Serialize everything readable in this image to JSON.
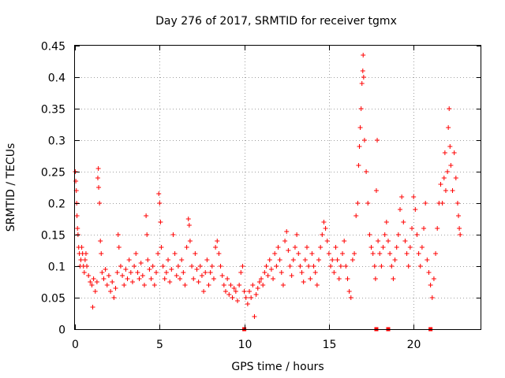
{
  "chart_data": {
    "type": "scatter",
    "title": "Day 276 of 2017, SRMTID for receiver tgmx",
    "xlabel": "GPS time / hours",
    "ylabel": "SRMTID / TECUs",
    "xlim": [
      0,
      24
    ],
    "ylim": [
      0,
      0.45
    ],
    "xticks": [
      "0",
      "5",
      "10",
      "15",
      "20"
    ],
    "xtick_values": [
      0,
      5,
      10,
      15,
      20
    ],
    "yticks": [
      "0",
      "0.05",
      "0.1",
      "0.15",
      "0.2",
      "0.25",
      "0.3",
      "0.35",
      "0.4",
      "0.45"
    ],
    "ytick_values": [
      0,
      0.05,
      0.1,
      0.15,
      0.2,
      0.25,
      0.3,
      0.35,
      0.4,
      0.45
    ],
    "grid": true,
    "marker": "+",
    "series": [
      {
        "name": "SRMTID",
        "color": "#ff0000",
        "points": [
          [
            0.02,
            0.25
          ],
          [
            0.05,
            0.235
          ],
          [
            0.08,
            0.22
          ],
          [
            0.1,
            0.2
          ],
          [
            0.12,
            0.18
          ],
          [
            0.15,
            0.16
          ],
          [
            0.18,
            0.15
          ],
          [
            0.22,
            0.13
          ],
          [
            0.26,
            0.12
          ],
          [
            0.3,
            0.1
          ],
          [
            0.35,
            0.11
          ],
          [
            0.4,
            0.13
          ],
          [
            0.45,
            0.12
          ],
          [
            0.5,
            0.1
          ],
          [
            0.55,
            0.09
          ],
          [
            0.6,
            0.11
          ],
          [
            0.65,
            0.12
          ],
          [
            0.7,
            0.1
          ],
          [
            0.8,
            0.085
          ],
          [
            0.9,
            0.075
          ],
          [
            1.0,
            0.07
          ],
          [
            1.05,
            0.035
          ],
          [
            1.1,
            0.08
          ],
          [
            1.2,
            0.06
          ],
          [
            1.3,
            0.075
          ],
          [
            1.35,
            0.24
          ],
          [
            1.38,
            0.255
          ],
          [
            1.4,
            0.225
          ],
          [
            1.45,
            0.2
          ],
          [
            1.5,
            0.14
          ],
          [
            1.55,
            0.12
          ],
          [
            1.6,
            0.09
          ],
          [
            1.7,
            0.08
          ],
          [
            1.8,
            0.095
          ],
          [
            1.9,
            0.07
          ],
          [
            2.0,
            0.085
          ],
          [
            2.1,
            0.06
          ],
          [
            2.2,
            0.075
          ],
          [
            2.3,
            0.05
          ],
          [
            2.4,
            0.065
          ],
          [
            2.5,
            0.09
          ],
          [
            2.55,
            0.15
          ],
          [
            2.6,
            0.13
          ],
          [
            2.7,
            0.1
          ],
          [
            2.8,
            0.085
          ],
          [
            2.9,
            0.07
          ],
          [
            3.0,
            0.095
          ],
          [
            3.1,
            0.08
          ],
          [
            3.2,
            0.11
          ],
          [
            3.3,
            0.09
          ],
          [
            3.4,
            0.075
          ],
          [
            3.5,
            0.1
          ],
          [
            3.6,
            0.12
          ],
          [
            3.7,
            0.09
          ],
          [
            3.8,
            0.08
          ],
          [
            3.9,
            0.105
          ],
          [
            4.0,
            0.085
          ],
          [
            4.1,
            0.07
          ],
          [
            4.2,
            0.18
          ],
          [
            4.25,
            0.15
          ],
          [
            4.3,
            0.11
          ],
          [
            4.4,
            0.095
          ],
          [
            4.5,
            0.08
          ],
          [
            4.6,
            0.1
          ],
          [
            4.7,
            0.07
          ],
          [
            4.8,
            0.09
          ],
          [
            4.9,
            0.12
          ],
          [
            4.95,
            0.215
          ],
          [
            5.0,
            0.2
          ],
          [
            5.05,
            0.17
          ],
          [
            5.1,
            0.13
          ],
          [
            5.2,
            0.1
          ],
          [
            5.3,
            0.08
          ],
          [
            5.4,
            0.09
          ],
          [
            5.5,
            0.11
          ],
          [
            5.6,
            0.075
          ],
          [
            5.7,
            0.095
          ],
          [
            5.8,
            0.15
          ],
          [
            5.9,
            0.12
          ],
          [
            6.0,
            0.085
          ],
          [
            6.1,
            0.1
          ],
          [
            6.2,
            0.08
          ],
          [
            6.3,
            0.11
          ],
          [
            6.4,
            0.09
          ],
          [
            6.5,
            0.07
          ],
          [
            6.6,
            0.13
          ],
          [
            6.7,
            0.175
          ],
          [
            6.75,
            0.165
          ],
          [
            6.8,
            0.14
          ],
          [
            6.9,
            0.1
          ],
          [
            7.0,
            0.08
          ],
          [
            7.1,
            0.12
          ],
          [
            7.2,
            0.095
          ],
          [
            7.3,
            0.075
          ],
          [
            7.4,
            0.1
          ],
          [
            7.5,
            0.085
          ],
          [
            7.6,
            0.06
          ],
          [
            7.7,
            0.09
          ],
          [
            7.8,
            0.11
          ],
          [
            7.9,
            0.07
          ],
          [
            8.0,
            0.09
          ],
          [
            8.1,
            0.1
          ],
          [
            8.2,
            0.08
          ],
          [
            8.3,
            0.13
          ],
          [
            8.4,
            0.14
          ],
          [
            8.5,
            0.12
          ],
          [
            8.6,
            0.1
          ],
          [
            8.7,
            0.085
          ],
          [
            8.8,
            0.07
          ],
          [
            8.9,
            0.06
          ],
          [
            9.0,
            0.08
          ],
          [
            9.1,
            0.055
          ],
          [
            9.2,
            0.07
          ],
          [
            9.3,
            0.05
          ],
          [
            9.4,
            0.065
          ],
          [
            9.5,
            0.06
          ],
          [
            9.6,
            0.045
          ],
          [
            9.7,
            0.07
          ],
          [
            9.8,
            0.09
          ],
          [
            9.9,
            0.1
          ],
          [
            10.0,
            0.06
          ],
          [
            10.1,
            0.05
          ],
          [
            10.2,
            0.04
          ],
          [
            10.3,
            0.06
          ],
          [
            10.4,
            0.05
          ],
          [
            10.5,
            0.07
          ],
          [
            10.6,
            0.02
          ],
          [
            10.7,
            0.055
          ],
          [
            10.8,
            0.065
          ],
          [
            10.9,
            0.075
          ],
          [
            11.0,
            0.08
          ],
          [
            11.1,
            0.07
          ],
          [
            11.2,
            0.09
          ],
          [
            11.3,
            0.1
          ],
          [
            11.4,
            0.085
          ],
          [
            11.5,
            0.11
          ],
          [
            11.6,
            0.095
          ],
          [
            11.7,
            0.08
          ],
          [
            11.8,
            0.12
          ],
          [
            11.9,
            0.1
          ],
          [
            12.0,
            0.13
          ],
          [
            12.1,
            0.11
          ],
          [
            12.2,
            0.09
          ],
          [
            12.3,
            0.07
          ],
          [
            12.4,
            0.14
          ],
          [
            12.5,
            0.155
          ],
          [
            12.6,
            0.125
          ],
          [
            12.7,
            0.1
          ],
          [
            12.8,
            0.085
          ],
          [
            12.9,
            0.11
          ],
          [
            13.0,
            0.13
          ],
          [
            13.1,
            0.15
          ],
          [
            13.2,
            0.12
          ],
          [
            13.3,
            0.1
          ],
          [
            13.4,
            0.09
          ],
          [
            13.5,
            0.075
          ],
          [
            13.6,
            0.11
          ],
          [
            13.7,
            0.13
          ],
          [
            13.8,
            0.1
          ],
          [
            13.9,
            0.08
          ],
          [
            14.0,
            0.12
          ],
          [
            14.1,
            0.1
          ],
          [
            14.2,
            0.09
          ],
          [
            14.3,
            0.07
          ],
          [
            14.4,
            0.11
          ],
          [
            14.5,
            0.13
          ],
          [
            14.6,
            0.15
          ],
          [
            14.7,
            0.17
          ],
          [
            14.8,
            0.16
          ],
          [
            14.9,
            0.14
          ],
          [
            15.0,
            0.12
          ],
          [
            15.1,
            0.1
          ],
          [
            15.2,
            0.11
          ],
          [
            15.3,
            0.09
          ],
          [
            15.4,
            0.13
          ],
          [
            15.5,
            0.11
          ],
          [
            15.6,
            0.08
          ],
          [
            15.7,
            0.1
          ],
          [
            15.8,
            0.12
          ],
          [
            15.9,
            0.14
          ],
          [
            16.0,
            0.1
          ],
          [
            16.1,
            0.08
          ],
          [
            16.2,
            0.06
          ],
          [
            16.3,
            0.05
          ],
          [
            16.4,
            0.11
          ],
          [
            16.5,
            0.12
          ],
          [
            16.6,
            0.18
          ],
          [
            16.7,
            0.2
          ],
          [
            16.75,
            0.26
          ],
          [
            16.8,
            0.29
          ],
          [
            16.85,
            0.32
          ],
          [
            16.9,
            0.35
          ],
          [
            16.95,
            0.39
          ],
          [
            17.0,
            0.41
          ],
          [
            17.02,
            0.435
          ],
          [
            17.05,
            0.4
          ],
          [
            17.1,
            0.3
          ],
          [
            17.2,
            0.25
          ],
          [
            17.3,
            0.2
          ],
          [
            17.4,
            0.15
          ],
          [
            17.5,
            0.13
          ],
          [
            17.6,
            0.12
          ],
          [
            17.7,
            0.1
          ],
          [
            17.75,
            0.08
          ],
          [
            17.8,
            0.22
          ],
          [
            17.85,
            0.3
          ],
          [
            17.9,
            0.14
          ],
          [
            18.0,
            0.12
          ],
          [
            18.1,
            0.1
          ],
          [
            18.2,
            0.13
          ],
          [
            18.3,
            0.15
          ],
          [
            18.4,
            0.17
          ],
          [
            18.5,
            0.14
          ],
          [
            18.6,
            0.12
          ],
          [
            18.7,
            0.1
          ],
          [
            18.8,
            0.08
          ],
          [
            18.9,
            0.11
          ],
          [
            19.0,
            0.13
          ],
          [
            19.1,
            0.15
          ],
          [
            19.2,
            0.19
          ],
          [
            19.3,
            0.21
          ],
          [
            19.4,
            0.17
          ],
          [
            19.5,
            0.14
          ],
          [
            19.6,
            0.12
          ],
          [
            19.7,
            0.1
          ],
          [
            19.8,
            0.13
          ],
          [
            19.9,
            0.16
          ],
          [
            20.0,
            0.21
          ],
          [
            20.1,
            0.19
          ],
          [
            20.2,
            0.15
          ],
          [
            20.3,
            0.12
          ],
          [
            20.4,
            0.1
          ],
          [
            20.5,
            0.13
          ],
          [
            20.6,
            0.16
          ],
          [
            20.7,
            0.2
          ],
          [
            20.8,
            0.11
          ],
          [
            20.9,
            0.09
          ],
          [
            21.0,
            0.07
          ],
          [
            21.1,
            0.05
          ],
          [
            21.2,
            0.08
          ],
          [
            21.3,
            0.12
          ],
          [
            21.4,
            0.16
          ],
          [
            21.5,
            0.2
          ],
          [
            21.6,
            0.23
          ],
          [
            21.7,
            0.2
          ],
          [
            21.8,
            0.24
          ],
          [
            21.85,
            0.28
          ],
          [
            21.9,
            0.22
          ],
          [
            22.0,
            0.25
          ],
          [
            22.05,
            0.32
          ],
          [
            22.1,
            0.35
          ],
          [
            22.15,
            0.29
          ],
          [
            22.2,
            0.26
          ],
          [
            22.3,
            0.22
          ],
          [
            22.4,
            0.28
          ],
          [
            22.5,
            0.24
          ],
          [
            22.6,
            0.2
          ],
          [
            22.65,
            0.18
          ],
          [
            22.7,
            0.16
          ],
          [
            22.75,
            0.15
          ]
        ]
      }
    ],
    "zero_markers_x": [
      10.0,
      17.8,
      18.5,
      21.0
    ]
  }
}
